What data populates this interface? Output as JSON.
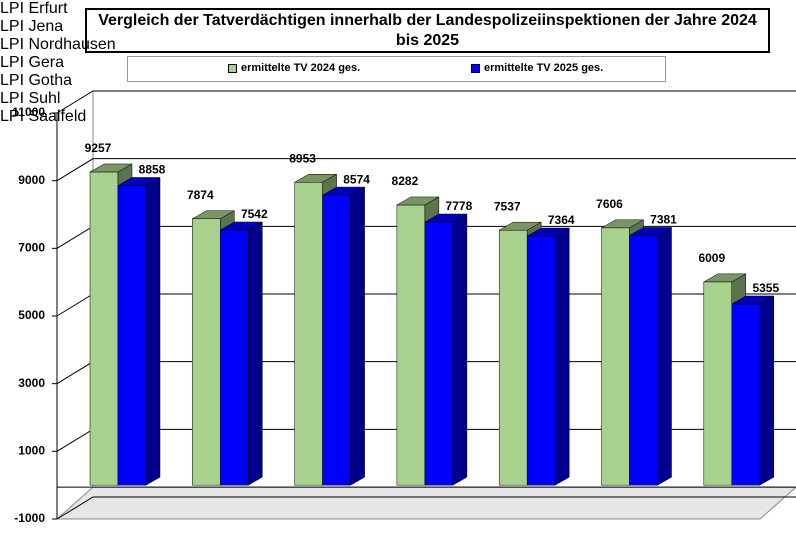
{
  "chart_data": {
    "type": "bar3d",
    "title": "Vergleich der Tatverdächtigen innerhalb der Landespolizeiinspektionen der Jahre 2024 bis 2025",
    "categories": [
      "LPI Erfurt",
      "LPI Jena",
      "LPI Nordhausen",
      "LPI Gera",
      "LPI Gotha",
      "LPI Suhl",
      "LPI Saalfeld"
    ],
    "series": [
      {
        "name": "ermittelte TV 2024 ges.",
        "color": "#a9d18e",
        "values": [
          9257,
          7874,
          8953,
          8282,
          7537,
          7606,
          6009
        ]
      },
      {
        "name": "ermittelte TV 2025 ges.",
        "color": "#0000ff",
        "values": [
          8858,
          7542,
          8574,
          7778,
          7364,
          7381,
          5355
        ]
      }
    ],
    "ylim": [
      -1000,
      11000
    ],
    "yticks": [
      -1000,
      1000,
      3000,
      5000,
      7000,
      9000,
      11000
    ],
    "grid": true,
    "legend": "top"
  }
}
